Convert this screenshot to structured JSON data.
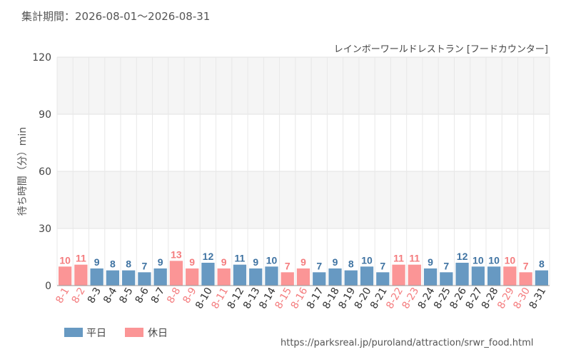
{
  "header": {
    "period_label": "集計期間：2026-08-01～2026-08-31"
  },
  "footer": {
    "source_url": "https://parksreal.jp/puroland/attraction/srwr_food.html"
  },
  "colors": {
    "weekday": "#6799c2",
    "holiday": "#fb9596",
    "weekday_label": "#3f73a2",
    "holiday_label": "#f47c7e"
  },
  "chart_data": {
    "type": "bar",
    "title": "レインボーワールドレストラン [フードカウンター]",
    "ylabel": "待ち時間（分）min",
    "ylim": [
      0,
      120
    ],
    "yticks": [
      0,
      30,
      60,
      90,
      120
    ],
    "grid": true,
    "legend_position": "bottom-left",
    "legend": [
      {
        "key": "weekday",
        "label": "平日"
      },
      {
        "key": "holiday",
        "label": "休日"
      }
    ],
    "categories": [
      "8-1",
      "8-2",
      "8-3",
      "8-4",
      "8-5",
      "8-6",
      "8-7",
      "8-8",
      "8-9",
      "8-10",
      "8-11",
      "8-12",
      "8-13",
      "8-14",
      "8-15",
      "8-16",
      "8-17",
      "8-18",
      "8-19",
      "8-20",
      "8-21",
      "8-22",
      "8-23",
      "8-24",
      "8-25",
      "8-26",
      "8-27",
      "8-28",
      "8-29",
      "8-30",
      "8-31"
    ],
    "values": [
      10,
      11,
      9,
      8,
      8,
      7,
      9,
      13,
      9,
      12,
      9,
      11,
      9,
      10,
      7,
      9,
      7,
      9,
      8,
      10,
      7,
      11,
      11,
      9,
      7,
      12,
      10,
      10,
      10,
      7,
      8
    ],
    "day_type": [
      "holiday",
      "holiday",
      "weekday",
      "weekday",
      "weekday",
      "weekday",
      "weekday",
      "holiday",
      "holiday",
      "weekday",
      "holiday",
      "weekday",
      "weekday",
      "weekday",
      "holiday",
      "holiday",
      "weekday",
      "weekday",
      "weekday",
      "weekday",
      "weekday",
      "holiday",
      "holiday",
      "weekday",
      "weekday",
      "weekday",
      "weekday",
      "weekday",
      "holiday",
      "holiday",
      "weekday"
    ]
  }
}
